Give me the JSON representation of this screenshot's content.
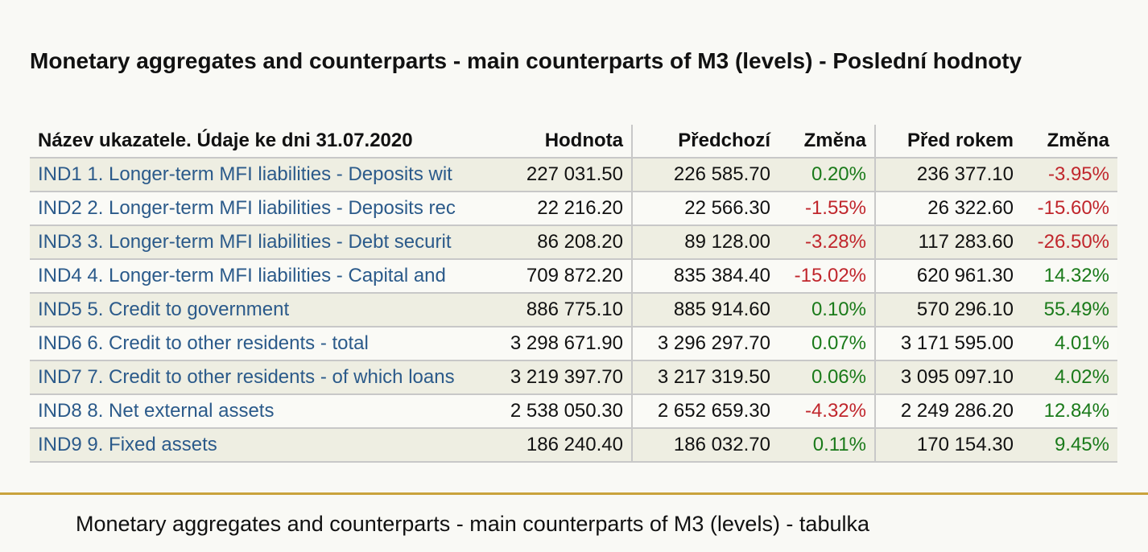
{
  "title": "Monetary aggregates and counterparts - main counterparts of M3 (levels) - Poslední hodnoty",
  "table": {
    "headers": {
      "name": "Název ukazatele. Údaje ke dni 31.07.2020",
      "value": "Hodnota",
      "previous": "Předchozí",
      "change1": "Změna",
      "year_ago": "Před rokem",
      "change2": "Změna"
    },
    "rows": [
      {
        "name": "IND1 1. Longer-term MFI liabilities - Deposits wit",
        "value": "227 031.50",
        "previous": "226 585.70",
        "change1": "0.20%",
        "change1_dir": "pos",
        "year_ago": "236 377.10",
        "change2": "-3.95%",
        "change2_dir": "neg"
      },
      {
        "name": "IND2 2. Longer-term MFI liabilities - Deposits rec",
        "value": "22 216.20",
        "previous": "22 566.30",
        "change1": "-1.55%",
        "change1_dir": "neg",
        "year_ago": "26 322.60",
        "change2": "-15.60%",
        "change2_dir": "neg"
      },
      {
        "name": "IND3 3. Longer-term MFI liabilities - Debt securit",
        "value": "86 208.20",
        "previous": "89 128.00",
        "change1": "-3.28%",
        "change1_dir": "neg",
        "year_ago": "117 283.60",
        "change2": "-26.50%",
        "change2_dir": "neg"
      },
      {
        "name": "IND4 4. Longer-term MFI liabilities - Capital and",
        "value": "709 872.20",
        "previous": "835 384.40",
        "change1": "-15.02%",
        "change1_dir": "neg",
        "year_ago": "620 961.30",
        "change2": "14.32%",
        "change2_dir": "pos"
      },
      {
        "name": "IND5 5. Credit to government",
        "value": "886 775.10",
        "previous": "885 914.60",
        "change1": "0.10%",
        "change1_dir": "pos",
        "year_ago": "570 296.10",
        "change2": "55.49%",
        "change2_dir": "pos"
      },
      {
        "name": "IND6 6. Credit to other residents - total",
        "value": "3 298 671.90",
        "previous": "3 296 297.70",
        "change1": "0.07%",
        "change1_dir": "pos",
        "year_ago": "3 171 595.00",
        "change2": "4.01%",
        "change2_dir": "pos"
      },
      {
        "name": "IND7 7. Credit to other residents - of which loans",
        "value": "3 219 397.70",
        "previous": "3 217 319.50",
        "change1": "0.06%",
        "change1_dir": "pos",
        "year_ago": "3 095 097.10",
        "change2": "4.02%",
        "change2_dir": "pos"
      },
      {
        "name": "IND8 8. Net external assets",
        "value": "2 538 050.30",
        "previous": "2 652 659.30",
        "change1": "-4.32%",
        "change1_dir": "neg",
        "year_ago": "2 249 286.20",
        "change2": "12.84%",
        "change2_dir": "pos"
      },
      {
        "name": "IND9 9. Fixed assets",
        "value": "186 240.40",
        "previous": "186 032.70",
        "change1": "0.11%",
        "change1_dir": "pos",
        "year_ago": "170 154.30",
        "change2": "9.45%",
        "change2_dir": "pos"
      }
    ]
  },
  "caption": "Monetary aggregates and counterparts - main counterparts of M3 (levels) - tabulka",
  "colors": {
    "positive": "#1a7a1a",
    "negative": "#c0262c",
    "link": "#2b5a8a",
    "rule": "#c9a33c"
  }
}
